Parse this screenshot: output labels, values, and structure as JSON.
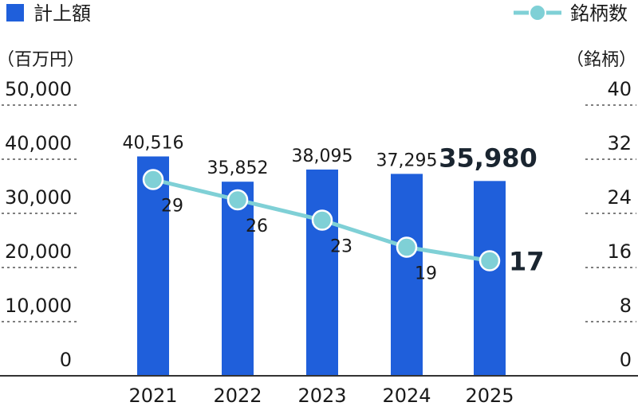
{
  "chart_data": {
    "type": "bar",
    "categories": [
      "2021",
      "2022",
      "2023",
      "2024",
      "2025"
    ],
    "series": [
      {
        "name": "計上額",
        "type": "bar",
        "axis": "left",
        "values": [
          40516,
          35852,
          38095,
          37295,
          35980
        ],
        "labels": [
          "40,516",
          "35,852",
          "38,095",
          "37,295",
          "35,980"
        ]
      },
      {
        "name": "銘柄数",
        "type": "line",
        "axis": "right",
        "values": [
          29,
          26,
          23,
          19,
          17
        ],
        "labels": [
          "29",
          "26",
          "23",
          "19",
          "17"
        ]
      }
    ],
    "y_left": {
      "unit": "（百万円）",
      "ylim": [
        0,
        50000
      ],
      "ticks": [
        0,
        10000,
        20000,
        30000,
        40000,
        50000
      ],
      "tick_labels": [
        "0",
        "10,000",
        "20,000",
        "30,000",
        "40,000",
        "50,000"
      ]
    },
    "y_right": {
      "unit": "（銘柄）",
      "ylim": [
        0,
        40
      ],
      "ticks": [
        0,
        8,
        16,
        24,
        32,
        40
      ],
      "tick_labels": [
        "0",
        "8",
        "16",
        "24",
        "32",
        "40"
      ]
    },
    "highlight_index": 4,
    "grid": "dotted horizontal",
    "legend_position": "top"
  },
  "legend": {
    "bar_label": "計上額",
    "line_label": "銘柄数"
  },
  "colors": {
    "bar": "#1f5fdb",
    "line": "#7fd0d6",
    "marker_fill": "#7fd0d6",
    "marker_stroke": "#ffffff",
    "grid": "#555555",
    "axis": "#333333"
  }
}
